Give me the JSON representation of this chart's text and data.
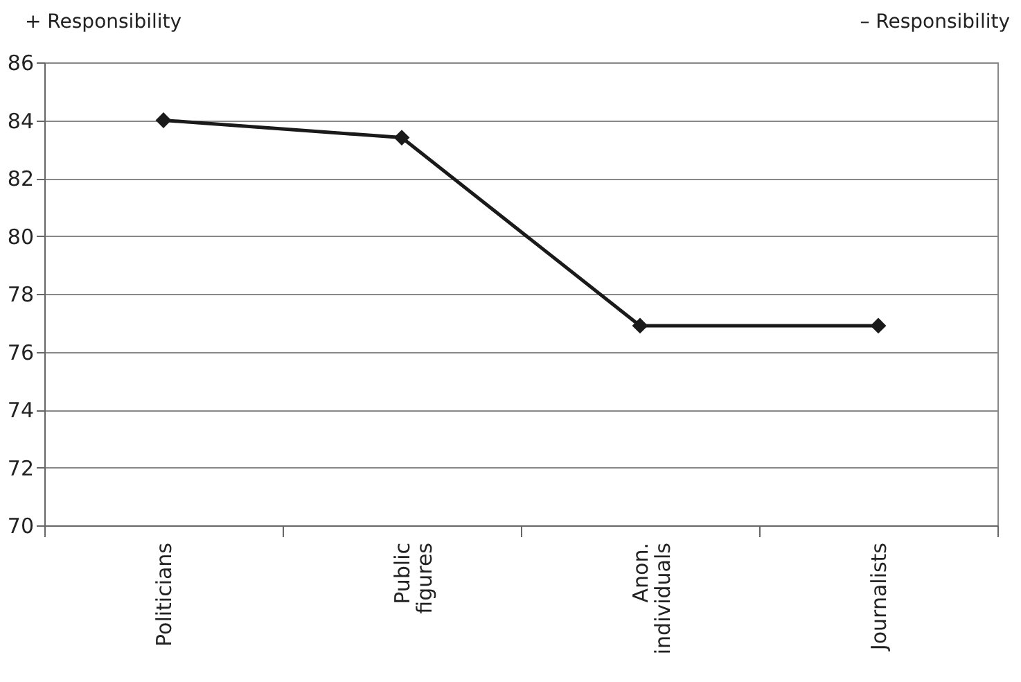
{
  "chart_data": {
    "type": "line",
    "categories": [
      "Politicians",
      "Public figures",
      "Anon. individuals",
      "Journalists"
    ],
    "series": [
      {
        "color": "#1a1a1a",
        "values": [
          84,
          83.4,
          76.9,
          76.9
        ]
      }
    ],
    "ylim": [
      70,
      86
    ],
    "yticks": [
      70,
      72,
      74,
      76,
      78,
      80,
      82,
      84,
      86
    ],
    "grid": "y",
    "marker": "diamond",
    "line_style": "solid",
    "legend": false,
    "annotations": [
      "+ Responsibility",
      "– Responsibility"
    ]
  }
}
